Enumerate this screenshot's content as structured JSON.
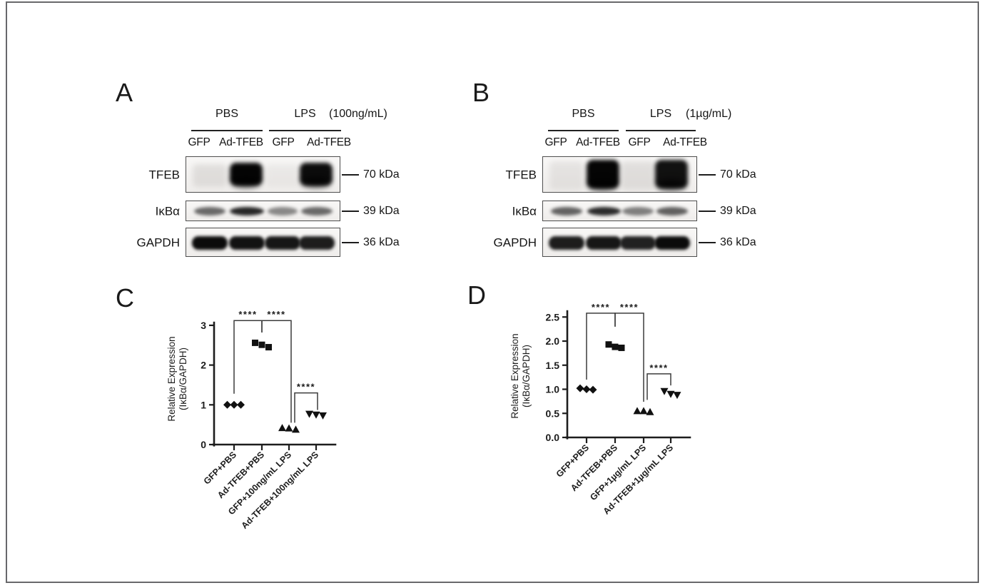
{
  "figure": {
    "background": "#ffffff",
    "border_color": "#68686b",
    "ink_color": "#111111"
  },
  "blot_panels": [
    {
      "id": "A",
      "label": "A",
      "treatment_groups": [
        "PBS",
        "LPS"
      ],
      "dose_label": "(100ng/mL)",
      "lane_labels": [
        "GFP",
        "Ad-TFEB",
        "GFP",
        "Ad-TFEB"
      ],
      "rows": [
        {
          "protein": "TFEB",
          "mw_label": "70 kDa",
          "band_style": "blob",
          "band_intensities": [
            0.1,
            1.0,
            0.05,
            0.97
          ]
        },
        {
          "protein": "IκBα",
          "mw_label": "39 kDa",
          "band_style": "thin",
          "band_intensities": [
            0.62,
            0.92,
            0.48,
            0.62
          ]
        },
        {
          "protein": "GAPDH",
          "mw_label": "36 kDa",
          "band_style": "thick",
          "band_intensities": [
            1.0,
            0.97,
            0.95,
            0.92
          ]
        }
      ]
    },
    {
      "id": "B",
      "label": "B",
      "treatment_groups": [
        "PBS",
        "LPS"
      ],
      "dose_label": "(1µg/mL)",
      "lane_labels": [
        "GFP",
        "Ad-TFEB",
        "GFP",
        "Ad-TFEB"
      ],
      "rows": [
        {
          "protein": "TFEB",
          "mw_label": "70 kDa",
          "band_style": "blob",
          "band_intensities": [
            0.08,
            1.0,
            0.1,
            0.95
          ]
        },
        {
          "protein": "IκBα",
          "mw_label": "39 kDa",
          "band_style": "thin",
          "band_intensities": [
            0.65,
            0.9,
            0.52,
            0.66
          ]
        },
        {
          "protein": "GAPDH",
          "mw_label": "36 kDa",
          "band_style": "thick",
          "band_intensities": [
            0.92,
            0.95,
            0.9,
            1.0
          ]
        }
      ]
    }
  ],
  "chart_data": [
    {
      "id": "C",
      "panel_label": "C",
      "type": "scatter",
      "title": "",
      "ylabel_line1": "Relative Expression",
      "ylabel_line2": "(IκBα/GAPDH)",
      "ylim": [
        0,
        3
      ],
      "yticks": [
        0,
        1,
        2,
        3
      ],
      "ytick_labels": [
        "0",
        "1",
        "2",
        "3"
      ],
      "grid": false,
      "legend": false,
      "categories": [
        "GFP+PBS",
        "Ad-TFEB+PBS",
        "GFP+100ng/mL LPS",
        "Ad-TFEB+100ng/mL LPS"
      ],
      "series": [
        {
          "name": "GFP+PBS",
          "marker": "diamond",
          "values": [
            1.0,
            1.0,
            1.0
          ]
        },
        {
          "name": "Ad-TFEB+PBS",
          "marker": "square",
          "values": [
            2.56,
            2.51,
            2.45
          ]
        },
        {
          "name": "GFP+100ng/mL LPS",
          "marker": "triangle-up",
          "values": [
            0.42,
            0.41,
            0.38
          ]
        },
        {
          "name": "Ad-TFEB+100ng/mL LPS",
          "marker": "triangle-down",
          "values": [
            0.77,
            0.75,
            0.73
          ]
        }
      ],
      "significance_brackets": [
        {
          "from": 0,
          "to": 1,
          "label": "****",
          "top": 3.12,
          "drop_from": 1.28,
          "drop_to": 2.82
        },
        {
          "from": 1,
          "to": 2,
          "label": "****",
          "top": 3.12,
          "drop_from": 2.82,
          "drop_to": 0.55
        },
        {
          "from": 2,
          "to": 3,
          "label": "****",
          "top": 1.3,
          "drop_from": 0.55,
          "drop_to": 0.87
        }
      ]
    },
    {
      "id": "D",
      "panel_label": "D",
      "type": "scatter",
      "title": "",
      "ylabel_line1": "Relative Expression",
      "ylabel_line2": "(IκBα/GAPDH)",
      "ylim": [
        0,
        2.5
      ],
      "yticks": [
        0,
        0.5,
        1.0,
        1.5,
        2.0,
        2.5
      ],
      "ytick_labels": [
        "0.0",
        "0.5",
        "1.0",
        "1.5",
        "2.0",
        "2.5"
      ],
      "grid": false,
      "legend": false,
      "categories": [
        "GFP+PBS",
        "Ad-TFEB+PBS",
        "GFP+1µg/mL LPS",
        "Ad-TFEB+1µg/mL LPS"
      ],
      "series": [
        {
          "name": "GFP+PBS",
          "marker": "diamond",
          "values": [
            1.02,
            1.0,
            0.99
          ]
        },
        {
          "name": "Ad-TFEB+PBS",
          "marker": "square",
          "values": [
            1.93,
            1.88,
            1.86
          ]
        },
        {
          "name": "GFP+1µg/mL LPS",
          "marker": "triangle-up",
          "values": [
            0.55,
            0.55,
            0.53
          ]
        },
        {
          "name": "Ad-TFEB+1µg/mL LPS",
          "marker": "triangle-down",
          "values": [
            0.96,
            0.9,
            0.88
          ]
        }
      ],
      "significance_brackets": [
        {
          "from": 0,
          "to": 1,
          "label": "****",
          "top": 2.58,
          "drop_from": 1.2,
          "drop_to": 2.3
        },
        {
          "from": 1,
          "to": 2,
          "label": "****",
          "top": 2.58,
          "drop_from": 2.3,
          "drop_to": 0.74
        },
        {
          "from": 2,
          "to": 3,
          "label": "****",
          "top": 1.32,
          "drop_from": 0.78,
          "drop_to": 1.08
        }
      ]
    }
  ]
}
